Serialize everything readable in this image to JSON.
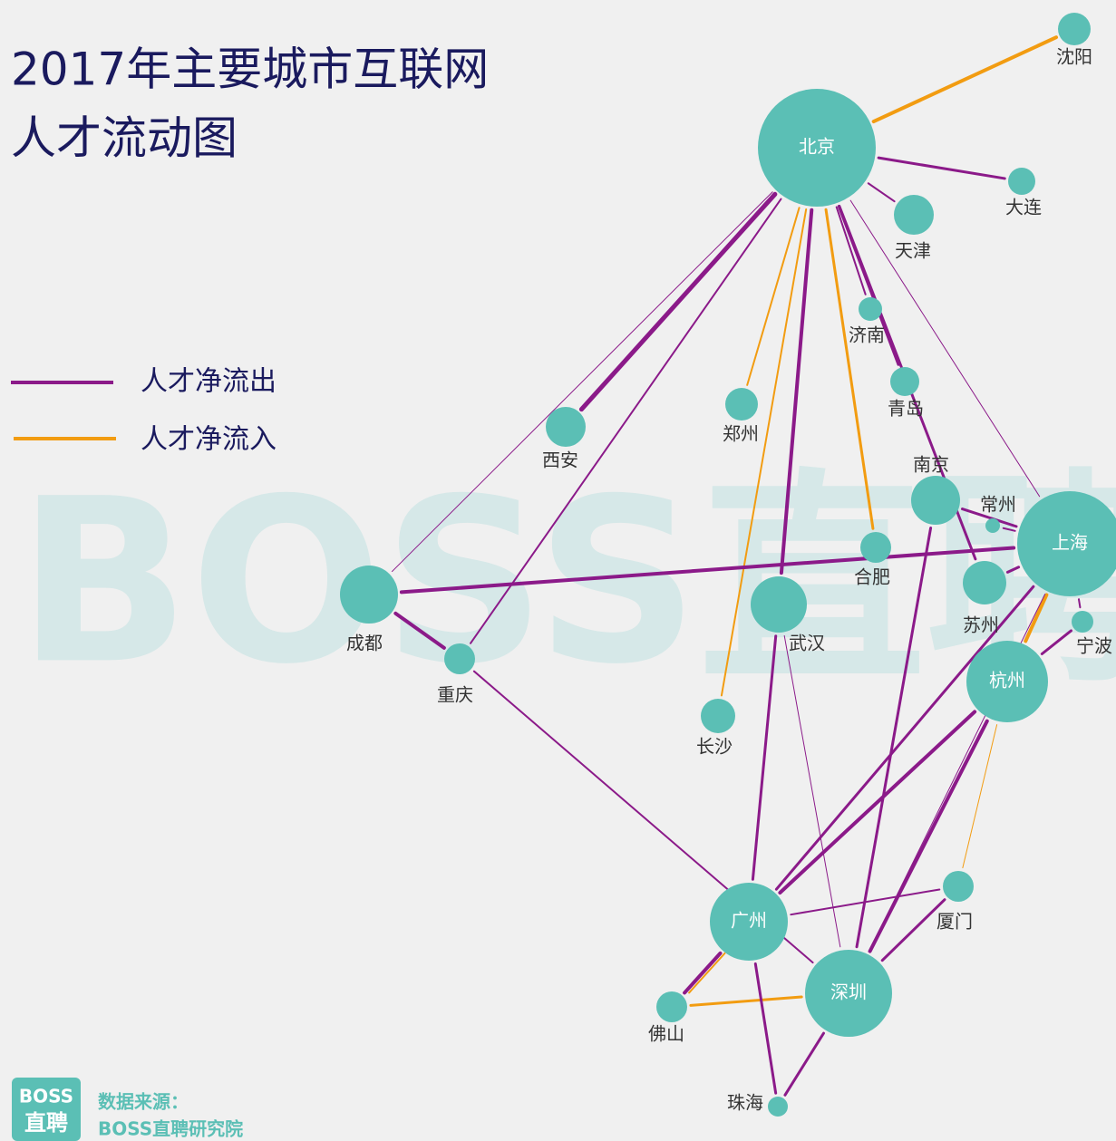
{
  "title": [
    "2017年主要城市互联网",
    "人才流动图"
  ],
  "legend": [
    "人才净流出",
    "人才净流入"
  ],
  "watermark": "BOSS直聘",
  "logo": [
    "BOSS",
    "直聘"
  ],
  "source": [
    "数据来源：",
    "BOSS直聘研究院"
  ],
  "nodes": [
    {
      "label": "北京"
    },
    {
      "label": "沈阳"
    },
    {
      "label": "大连"
    },
    {
      "label": "天津"
    },
    {
      "label": "济南"
    },
    {
      "label": "青岛"
    },
    {
      "label": "郑州"
    },
    {
      "label": "西安"
    },
    {
      "label": "南京"
    },
    {
      "label": "常州"
    },
    {
      "label": "上海"
    },
    {
      "label": "合肥"
    },
    {
      "label": "成都"
    },
    {
      "label": "苏州"
    },
    {
      "label": "武汉"
    },
    {
      "label": "宁波"
    },
    {
      "label": "重庆"
    },
    {
      "label": "杭州"
    },
    {
      "label": "长沙"
    },
    {
      "label": "厦门"
    },
    {
      "label": "广州"
    },
    {
      "label": "深圳"
    },
    {
      "label": "佛山"
    },
    {
      "label": "珠海"
    }
  ]
}
